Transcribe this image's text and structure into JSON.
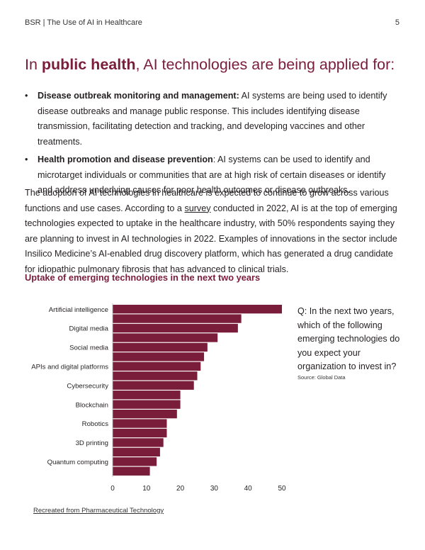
{
  "header": {
    "running_title": "BSR | The Use of AI in Healthcare",
    "page_number": "5"
  },
  "heading": {
    "prefix": "In ",
    "bold": "public health",
    "suffix": ", AI technologies are being applied for:"
  },
  "bullets": [
    {
      "term": "Disease outbreak monitoring and management:",
      "text": " AI systems are being used to identify disease outbreaks and manage public response. This includes identifying disease transmission, facilitating detection and tracking, and developing vaccines and other treatments."
    },
    {
      "term": "Health promotion and disease prevention",
      "text": ": AI systems can be used to identify and microtarget individuals or communities that are at high risk of certain diseases or identify and address underlying causes for poor health outcomes or disease outbreaks."
    }
  ],
  "paragraph": {
    "before_link": "The adoption of AI technologies in healthcare is expected to continue to grow across various functions and use cases. According to a ",
    "link": "survey",
    "after_link": " conducted in 2022, AI is at the top of emerging technologies expected to uptake in the healthcare industry, with 50% respondents saying they are planning to invest in AI technologies in 2022. Examples of innovations in the sector include Insilico Medicine’s AI-enabled drug discovery platform, which has generated a drug candidate for idiopathic pulmonary fibrosis that has advanced to clinical trials."
  },
  "chart_note": {
    "question": "Q: In the next two years, which of the following emerging technologies do you expect your organization to invest in?",
    "source": "Source: Global Data"
  },
  "footer": {
    "credit": "Recreated from Pharmaceutical Technology"
  },
  "chart_data": {
    "type": "bar",
    "orientation": "horizontal",
    "title": "Uptake of emerging technologies in the next two years",
    "bar_color": "#7a1d3b",
    "values": [
      50,
      38,
      37,
      31,
      28,
      27,
      26,
      25,
      24,
      20,
      20,
      19,
      16,
      16,
      15,
      14,
      13,
      11
    ],
    "category_labels": [
      {
        "label": "Artificial intelligence",
        "index": 0
      },
      {
        "label": "Digital media",
        "index": 2
      },
      {
        "label": "Social media",
        "index": 4
      },
      {
        "label": "APIs and digital platforms",
        "index": 6
      },
      {
        "label": "Cybersecurity",
        "index": 8
      },
      {
        "label": "Blockchain",
        "index": 10
      },
      {
        "label": "Robotics",
        "index": 12
      },
      {
        "label": "3D printing",
        "index": 14
      },
      {
        "label": "Quantum computing",
        "index": 16
      }
    ],
    "xticks": [
      0,
      10,
      20,
      30,
      40,
      50
    ],
    "xlim": [
      0,
      50
    ],
    "xlabel": "",
    "ylabel": ""
  }
}
